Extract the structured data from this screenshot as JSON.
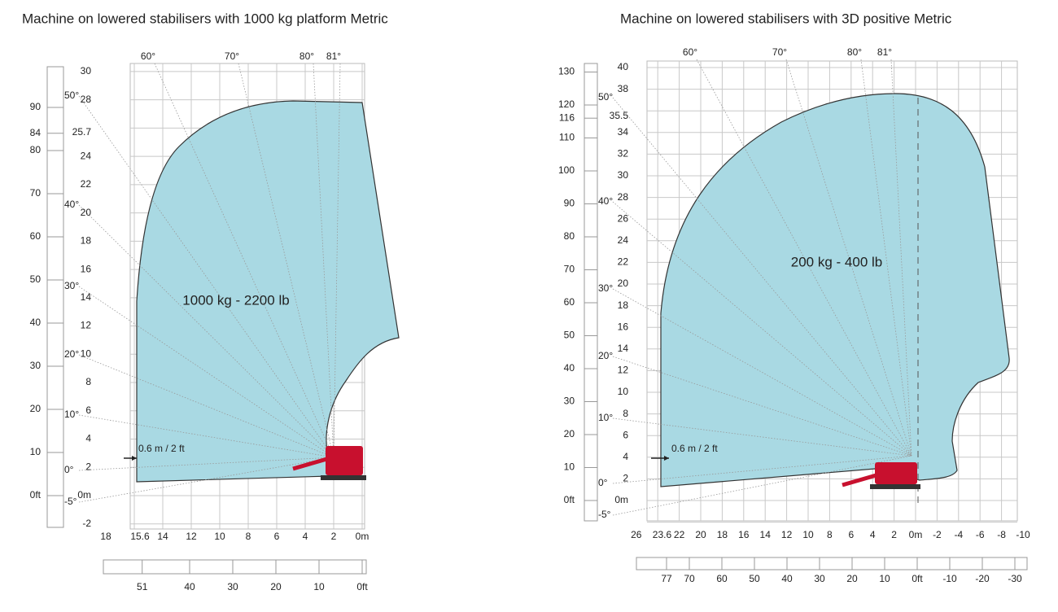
{
  "panels": [
    {
      "title": "Machine on lowered stabilisers with 1000 kg platform Metric",
      "load_label": "1000 kg - 2200 lb",
      "offset_label": "0.6 m / 2 ft",
      "y_metric": [
        "30",
        "28",
        "25.7",
        "24",
        "22",
        "20",
        "18",
        "16",
        "14",
        "12",
        "10",
        "8",
        "6",
        "4",
        "2",
        "0m",
        "-2"
      ],
      "y_feet": [
        "90",
        "84",
        "80",
        "70",
        "60",
        "50",
        "40",
        "30",
        "20",
        "10",
        "0ft"
      ],
      "angles_top": [
        "60°",
        "70°",
        "80°",
        "81°"
      ],
      "angles_left": [
        "50°",
        "40°",
        "30°",
        "20°",
        "10°",
        "0°",
        "-5°"
      ],
      "x_metric": [
        "18",
        "15.6",
        "14",
        "12",
        "10",
        "8",
        "6",
        "4",
        "2",
        "0m"
      ],
      "x_feet": [
        "51",
        "40",
        "30",
        "20",
        "10",
        "0ft"
      ]
    },
    {
      "title": "Machine on lowered stabilisers with 3D positive Metric",
      "load_label": "200 kg - 400 lb",
      "offset_label": "0.6 m / 2 ft",
      "y_metric": [
        "40",
        "38",
        "35.5",
        "34",
        "32",
        "30",
        "28",
        "26",
        "24",
        "22",
        "20",
        "18",
        "16",
        "14",
        "12",
        "10",
        "8",
        "6",
        "4",
        "2",
        "0m"
      ],
      "y_feet": [
        "130",
        "120",
        "116",
        "110",
        "100",
        "90",
        "80",
        "70",
        "60",
        "50",
        "40",
        "30",
        "20",
        "10",
        "0ft"
      ],
      "angles_top": [
        "60°",
        "70°",
        "80°",
        "81°"
      ],
      "angles_left": [
        "50°",
        "40°",
        "30°",
        "20°",
        "10°",
        "0°",
        "-5°"
      ],
      "x_metric": [
        "26",
        "23.6",
        "22",
        "20",
        "18",
        "16",
        "14",
        "12",
        "10",
        "8",
        "6",
        "4",
        "2",
        "0m",
        "-2",
        "-4",
        "-6",
        "-8",
        "-10"
      ],
      "x_feet": [
        "77",
        "70",
        "60",
        "50",
        "40",
        "30",
        "20",
        "10",
        "0ft",
        "-10",
        "-20",
        "-30"
      ]
    }
  ]
}
